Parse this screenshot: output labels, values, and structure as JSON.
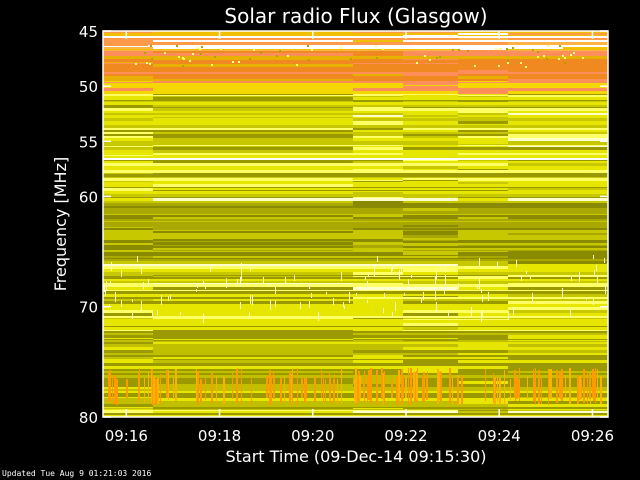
{
  "chart_data": {
    "type": "heatmap",
    "title": "Solar radio Flux (Glasgow)",
    "ylabel": "Frequency [MHz]",
    "xlabel": "Start Time (09-Dec-14 09:15:30)",
    "x_start": "09:15:30",
    "x_end": "09:26:20",
    "x_ticks": [
      "09:16",
      "09:18",
      "09:20",
      "09:22",
      "09:24",
      "09:26"
    ],
    "ylim": [
      45,
      80
    ],
    "y_axis_direction": "increasing downward",
    "y_ticks": [
      45,
      50,
      55,
      60,
      70,
      80
    ],
    "colormap": [
      "#7f7f00",
      "#b8b800",
      "#e3e300",
      "#ffff55",
      "#ffa040",
      "#ff8c4a",
      "#ffffff"
    ],
    "colors": {
      "background": "#000000",
      "axes": "#ffffff",
      "low": "#9a9a00",
      "mid": "#e6e600",
      "high": "#ffff66",
      "burst": "#ff9a00",
      "interference": "#ff8f5a"
    }
  },
  "footer": {
    "updated": "Updated Tue Aug  9 01:21:03 2016"
  }
}
